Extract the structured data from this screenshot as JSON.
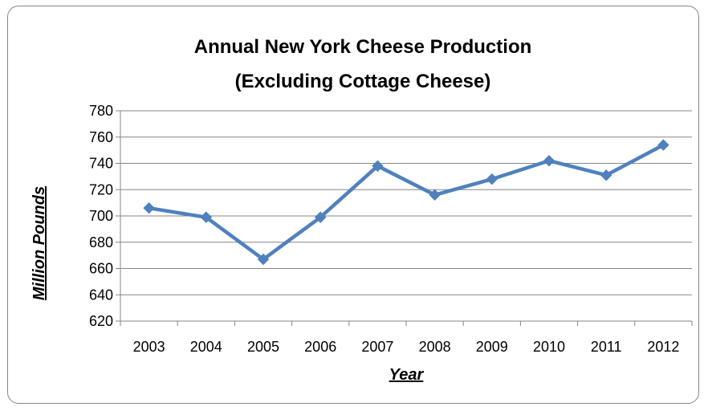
{
  "chart_data": {
    "type": "line",
    "title_lines": [
      "Annual New York Cheese Production",
      "(Excluding Cottage Cheese)"
    ],
    "xlabel": "Year",
    "ylabel": "Million Pounds",
    "categories": [
      "2003",
      "2004",
      "2005",
      "2006",
      "2007",
      "2008",
      "2009",
      "2010",
      "2011",
      "2012"
    ],
    "series": [
      {
        "values": [
          706,
          699,
          667,
          699,
          738,
          716,
          728,
          742,
          731,
          754
        ]
      }
    ],
    "ylim": [
      620,
      780
    ],
    "ytick_step": 20,
    "yticks": [
      "620",
      "640",
      "660",
      "680",
      "700",
      "720",
      "740",
      "760",
      "780"
    ],
    "grid": true,
    "legend": "none",
    "colors": {
      "series": "#4F81BD",
      "grid": "#868686",
      "axis": "#868686"
    }
  }
}
